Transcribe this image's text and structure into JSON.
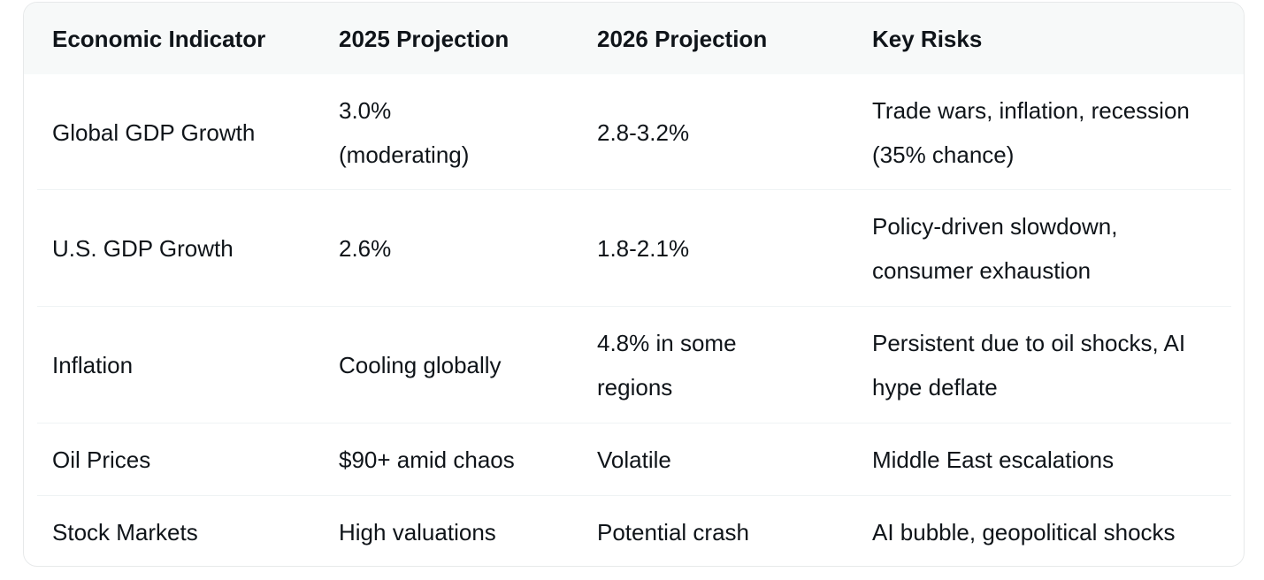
{
  "table": {
    "header": [
      "Economic Indicator",
      "2025 Projection",
      "2026 Projection",
      "Key Risks"
    ],
    "rows": [
      [
        "Global GDP Growth",
        "3.0% (moderating)",
        "2.8-3.2%",
        "Trade wars, inflation, recession (35% chance)"
      ],
      [
        "U.S. GDP Growth",
        "2.6%",
        "1.8-2.1%",
        "Policy-driven slowdown, consumer exhaustion"
      ],
      [
        "Inflation",
        "Cooling globally",
        "4.8% in some regions",
        "Persistent due to oil shocks, AI hype deflate"
      ],
      [
        "Oil Prices",
        "$90+ amid chaos",
        "Volatile",
        "Middle East escalations"
      ],
      [
        "Stock Markets",
        "High valuations",
        "Potential crash",
        "AI bubble, geopolitical shocks"
      ]
    ]
  }
}
